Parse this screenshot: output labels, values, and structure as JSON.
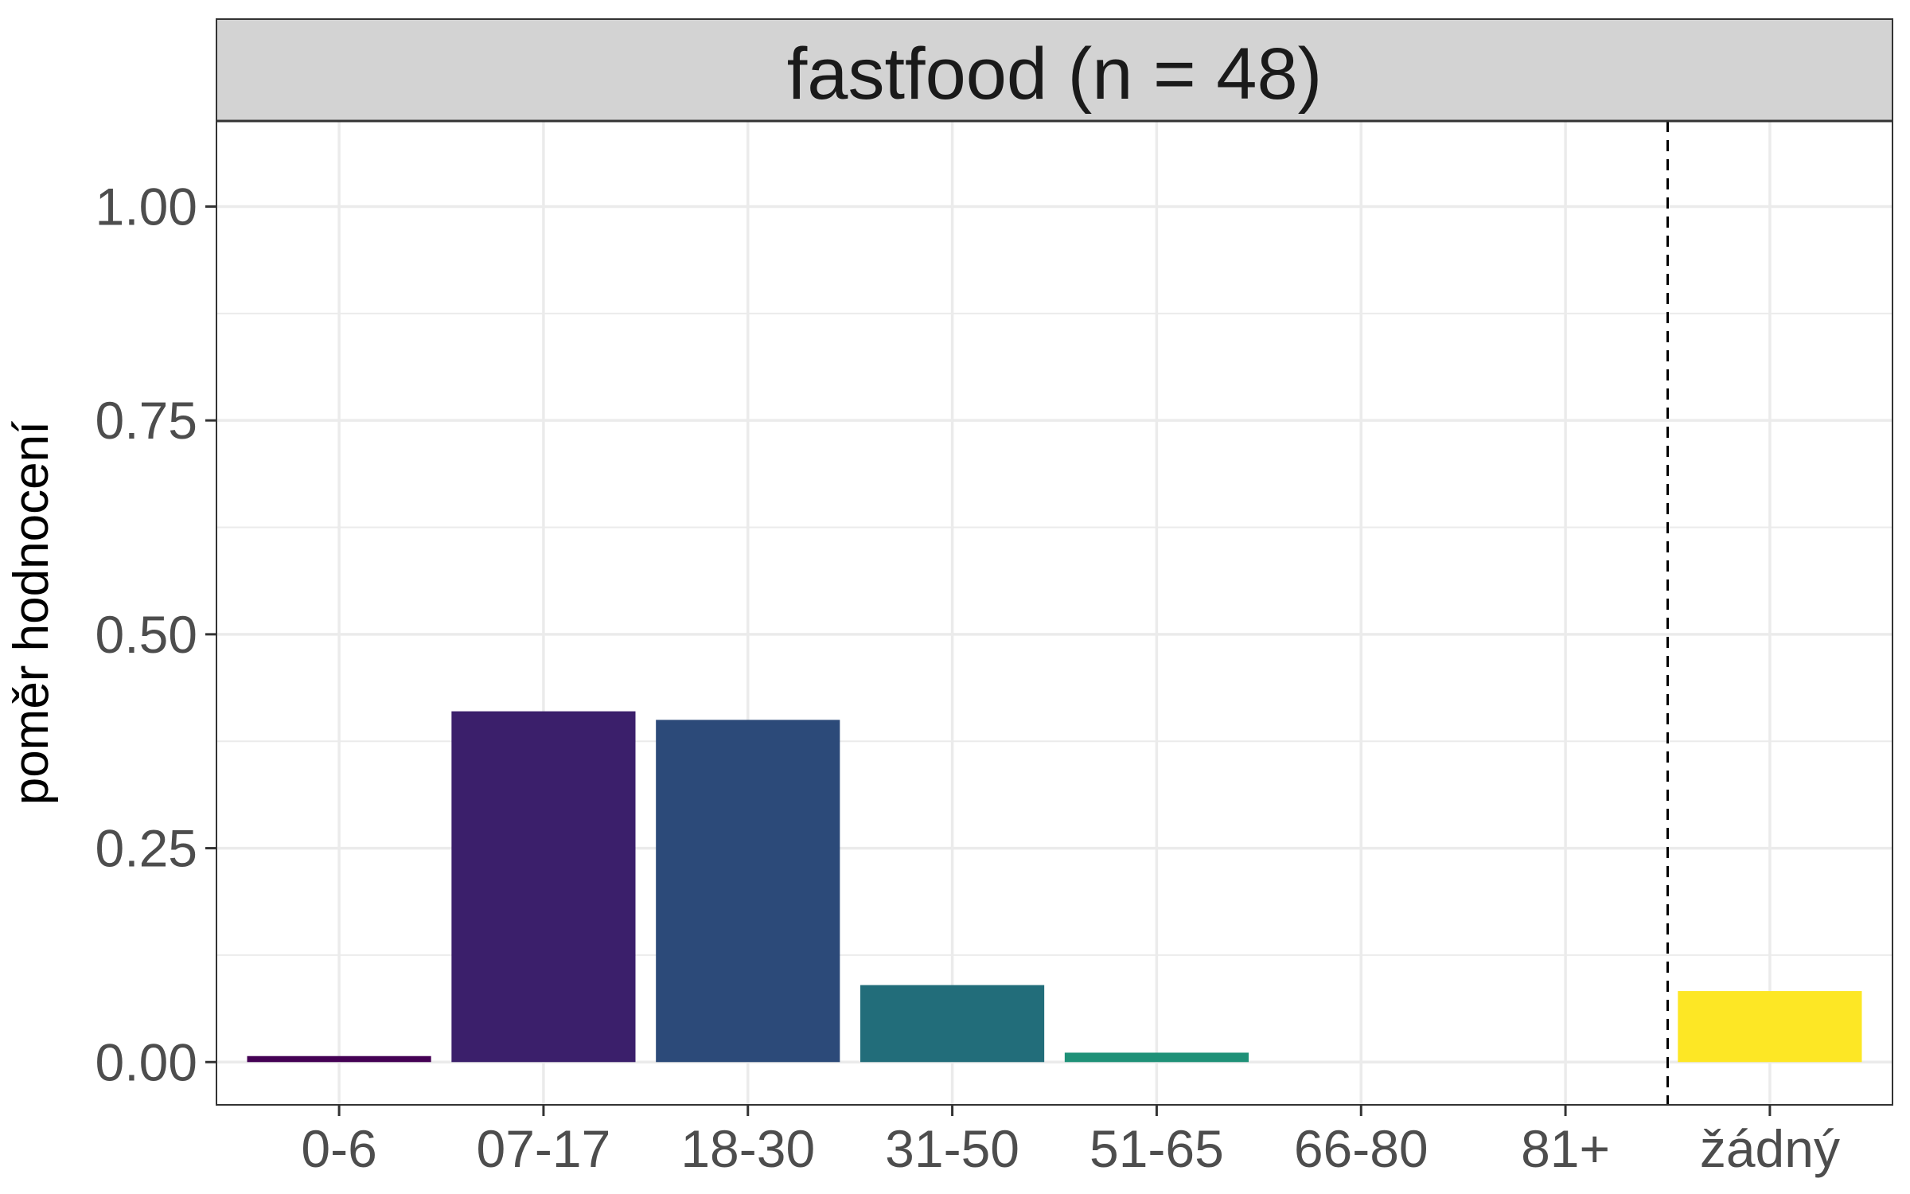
{
  "chart_data": {
    "type": "bar",
    "title": "fastfood (n = 48)",
    "xlabel": "",
    "ylabel": "poměr hodnocení",
    "categories": [
      "0-6",
      "07-17",
      "18-30",
      "31-50",
      "51-65",
      "66-80",
      "81+",
      "žádný"
    ],
    "values": [
      0.007,
      0.41,
      0.4,
      0.09,
      0.011,
      0,
      0,
      0.083
    ],
    "colors": [
      "#440154",
      "#3b1f6b",
      "#2c4a79",
      "#226d7a",
      "#1f9178",
      "#5ec962",
      "#b5de2b",
      "#fde725"
    ],
    "ylim": [
      -0.05,
      1.1
    ],
    "yticks": [
      "0.00",
      "0.25",
      "0.50",
      "0.75",
      "1.00"
    ],
    "ytick_values": [
      0,
      0.25,
      0.5,
      0.75,
      1.0
    ],
    "separator_after_category": "81+",
    "grid": true,
    "theme": "bw"
  }
}
